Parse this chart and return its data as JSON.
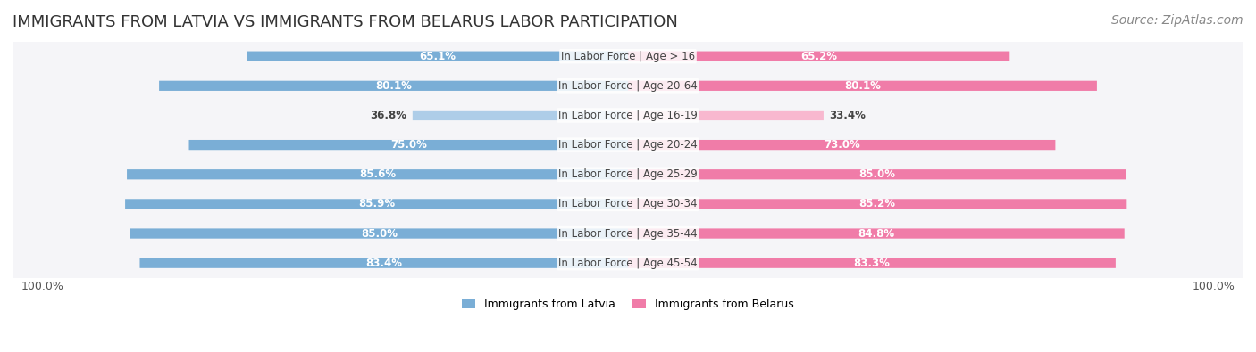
{
  "title": "IMMIGRANTS FROM LATVIA VS IMMIGRANTS FROM BELARUS LABOR PARTICIPATION",
  "source": "Source: ZipAtlas.com",
  "categories": [
    "In Labor Force | Age > 16",
    "In Labor Force | Age 20-64",
    "In Labor Force | Age 16-19",
    "In Labor Force | Age 20-24",
    "In Labor Force | Age 25-29",
    "In Labor Force | Age 30-34",
    "In Labor Force | Age 35-44",
    "In Labor Force | Age 45-54"
  ],
  "latvia_values": [
    65.1,
    80.1,
    36.8,
    75.0,
    85.6,
    85.9,
    85.0,
    83.4
  ],
  "belarus_values": [
    65.2,
    80.1,
    33.4,
    73.0,
    85.0,
    85.2,
    84.8,
    83.3
  ],
  "latvia_color": "#7aaed6",
  "latvia_color_light": "#aecde8",
  "belarus_color": "#f07ca8",
  "belarus_color_light": "#f8b8cf",
  "bar_bg_color": "#f0f0f5",
  "row_bg_color": "#f5f5f8",
  "max_value": 100.0,
  "legend_latvia": "Immigrants from Latvia",
  "legend_belarus": "Immigrants from Belarus",
  "title_fontsize": 13,
  "source_fontsize": 10,
  "label_fontsize": 8.5,
  "value_fontsize": 8.5
}
